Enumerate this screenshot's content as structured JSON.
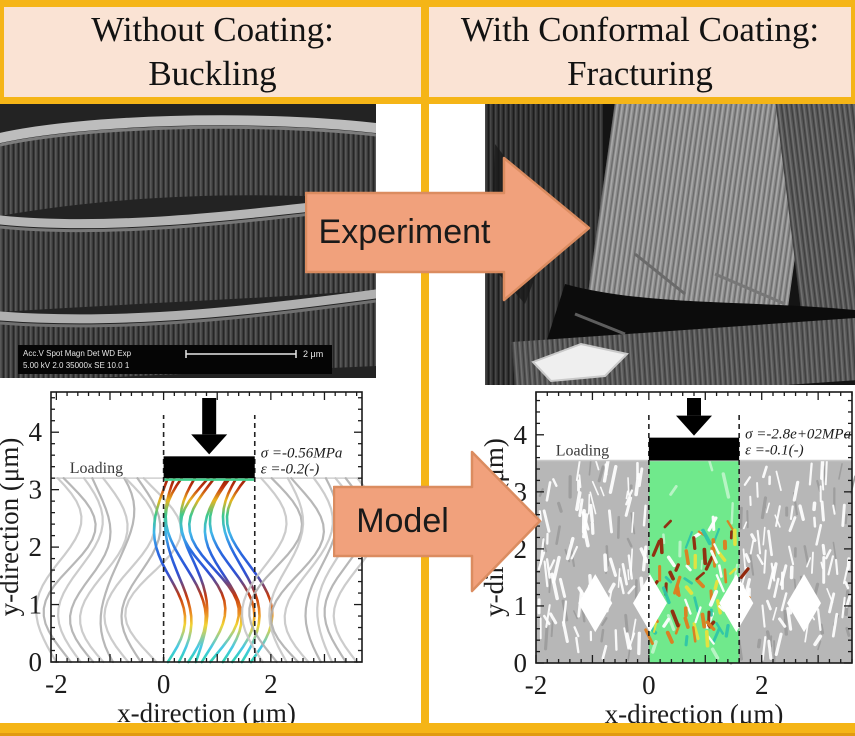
{
  "colors": {
    "gold": "#F5B517",
    "gold_dark": "#E19A10",
    "header_bg": "#FAE3D4",
    "header_text": "#121212",
    "arrow_fill": "#F1A17C",
    "arrow_stroke": "#DB8C60",
    "arrow_text": "#1A1A1A",
    "plot_green": "#70E98C"
  },
  "header": {
    "left_line1": "Without Coating:",
    "left_line2": "Buckling",
    "right_line1": "With Conformal Coating:",
    "right_line2": "Fracturing"
  },
  "arrows": {
    "experiment": "Experiment",
    "model": "Model"
  },
  "sem": {
    "left": {
      "info_line1": "Acc.V  Spot Magn   Det  WD  Exp",
      "info_line2": "5.00 kV 2.0  35000x  SE  10.0  1",
      "scale_label": "2 μm"
    }
  },
  "chart_data": [
    {
      "id": "model_buckling",
      "type": "line",
      "title": "",
      "xlabel": "x-direction (μm)",
      "ylabel": "y-direction (μm)",
      "xlim": [
        -2.1,
        3.7
      ],
      "ylim": [
        0,
        4.7
      ],
      "xticks": [
        -2,
        0,
        2
      ],
      "yticks": [
        0,
        1,
        2,
        3,
        4
      ],
      "grid": false,
      "annotations": {
        "sigma": "σ =-0.56MPa",
        "epsilon": "ε =-0.2(-)",
        "loading": "Loading"
      },
      "indenter": {
        "x0": 0,
        "x1": 1.7,
        "y0": 3.2,
        "y1": 3.58
      },
      "dashed_x": [
        0,
        1.7
      ],
      "dashed_ytop": 4.3,
      "fiber_top": 3.2,
      "mode": "buckling",
      "fiber_groups": [
        {
          "palette": "gray",
          "x0": -2.0,
          "x1": -0.2,
          "n": 9,
          "dir": -1
        },
        {
          "palette": "rainbow",
          "x0": 0.08,
          "x1": 1.62,
          "n": 10,
          "dir": 1
        },
        {
          "palette": "gray",
          "x0": 1.85,
          "x1": 3.6,
          "n": 9,
          "dir": -1
        }
      ],
      "gray_palette": [
        "#c6c6c6",
        "#afafaf"
      ],
      "rainbow_stops": [
        [
          "0",
          "#2fd3b0"
        ],
        [
          "0.08",
          "#46c8e8"
        ],
        [
          "0.2",
          "#f2d434"
        ],
        [
          "0.28",
          "#e87e1e"
        ],
        [
          "0.36",
          "#c23a10"
        ],
        [
          "0.48",
          "#2f51d4"
        ],
        [
          "0.6",
          "#2a6ae0"
        ],
        [
          "0.7",
          "#41b5ea"
        ],
        [
          "0.8",
          "#3fc98c"
        ],
        [
          "0.88",
          "#e8b31f"
        ],
        [
          "0.95",
          "#c2330e"
        ],
        [
          "1",
          "#8a1f08"
        ]
      ]
    },
    {
      "id": "model_fracturing",
      "type": "line",
      "title": "",
      "xlabel": "x-direction (μm)",
      "ylabel": "y-direction (μm)",
      "xlim": [
        -2.0,
        3.6
      ],
      "ylim": [
        0,
        4.75
      ],
      "xticks": [
        -2,
        0,
        2
      ],
      "yticks": [
        0,
        1,
        2,
        3,
        4
      ],
      "grid": false,
      "annotations": {
        "sigma": "σ =-2.8e+02MPa",
        "epsilon": "ε =-0.1(-)",
        "loading": "Loading"
      },
      "indenter": {
        "x0": 0,
        "x1": 1.6,
        "y0": 3.55,
        "y1": 3.95
      },
      "dashed_x": [
        0,
        1.6
      ],
      "dashed_ytop": 4.35,
      "fiber_top": 3.55,
      "mode": "fracturing",
      "field_color": "#b7b7b7",
      "column": {
        "x0": 0,
        "x1": 1.6,
        "color": "#70E98C"
      },
      "speckle_colors": [
        "#2fc6a8",
        "#e8e23c",
        "#df7d1f",
        "#92280c",
        "#ffffff"
      ],
      "voids_y": 1.05,
      "voids_x": [
        -0.95,
        0.02,
        1.55,
        2.75
      ]
    }
  ]
}
